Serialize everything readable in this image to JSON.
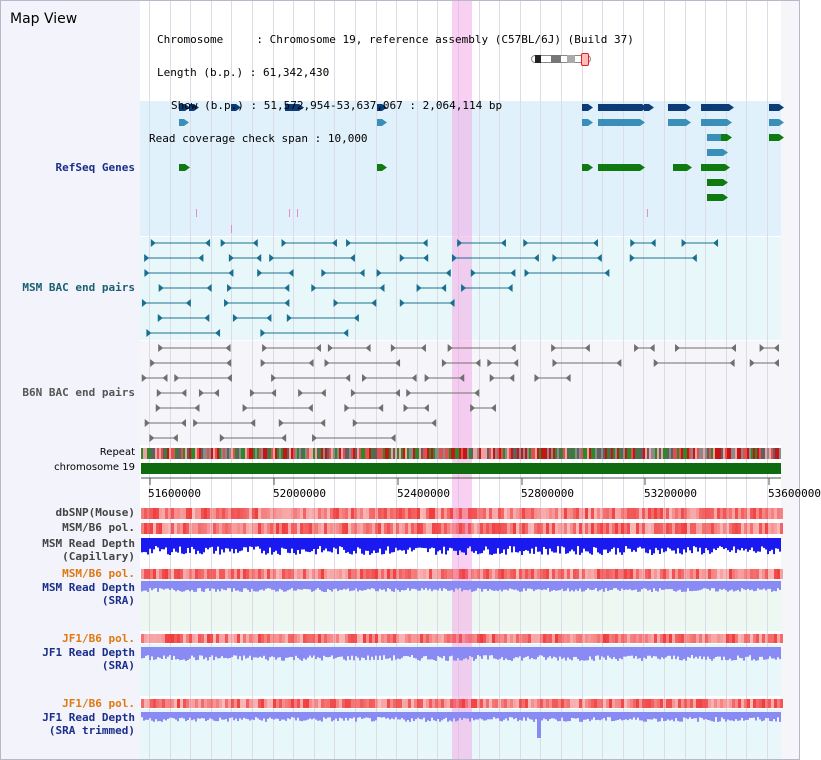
{
  "view_title": "Map View",
  "header": {
    "chromosome_label": "Chromosome",
    "chromosome_value": ": Chromosome 19, reference assembly (C57BL/6J) (Build 37)",
    "length_label": "Length (b.p.)",
    "length_value": ": 61,342,430",
    "show_label": "Show (b.p.)",
    "show_value": ": 51,572,954-53,637,067 : 2,064,114 bp",
    "coverage_label": "Read coverage check span",
    "coverage_value": ": 10,000"
  },
  "tracks": {
    "refseq": "RefSeq Genes",
    "msm_bac": "MSM BAC end pairs",
    "b6n_bac": "B6N BAC end pairs",
    "repeat": "Repeat",
    "chromosome": "chromosome 19",
    "dbsnp": "dbSNP(Mouse)",
    "msm_b6_pol_1": "MSM/B6 pol.",
    "msm_read_depth_cap_1": "MSM Read Depth",
    "msm_read_depth_cap_2": "(Capillary)",
    "msm_b6_pol_2": "MSM/B6 pol.",
    "msm_read_depth_sra_1": "MSM Read Depth",
    "msm_read_depth_sra_2": "(SRA)",
    "jf1_b6_pol_1": "JF1/B6 pol.",
    "jf1_read_depth_sra_1": "JF1 Read Depth",
    "jf1_read_depth_sra_2": "(SRA)",
    "jf1_b6_pol_2": "JF1/B6 pol.",
    "jf1_read_depth_trim_1": "JF1 Read Depth",
    "jf1_read_depth_trim_2": "(SRA trimmed)"
  },
  "axis": {
    "ticks": [
      "51600000",
      "52000000",
      "52400000",
      "52800000",
      "53200000",
      "53600000"
    ]
  },
  "colors": {
    "refseq_bg": "#e0f1fb",
    "msm_bg": "#e8f8fa",
    "b6n_bg": "#f5f5fa",
    "refseq_dark": "#0c3c78",
    "refseq_mid": "#3a8fb8",
    "refseq_green": "#0f7a0f",
    "msm_pair": "#1a6f90",
    "b6n_pair": "#6f6f6f",
    "chromosome": "#0f6b0f",
    "snp": "#f03c3c",
    "depth_cap": "#1a1af0",
    "depth_sra": "#8a8af5",
    "highlight": "#f2aae6",
    "label_navy": "#1a2e8a",
    "label_orange": "#e07810",
    "label_teal": "#1a5f6f"
  }
}
